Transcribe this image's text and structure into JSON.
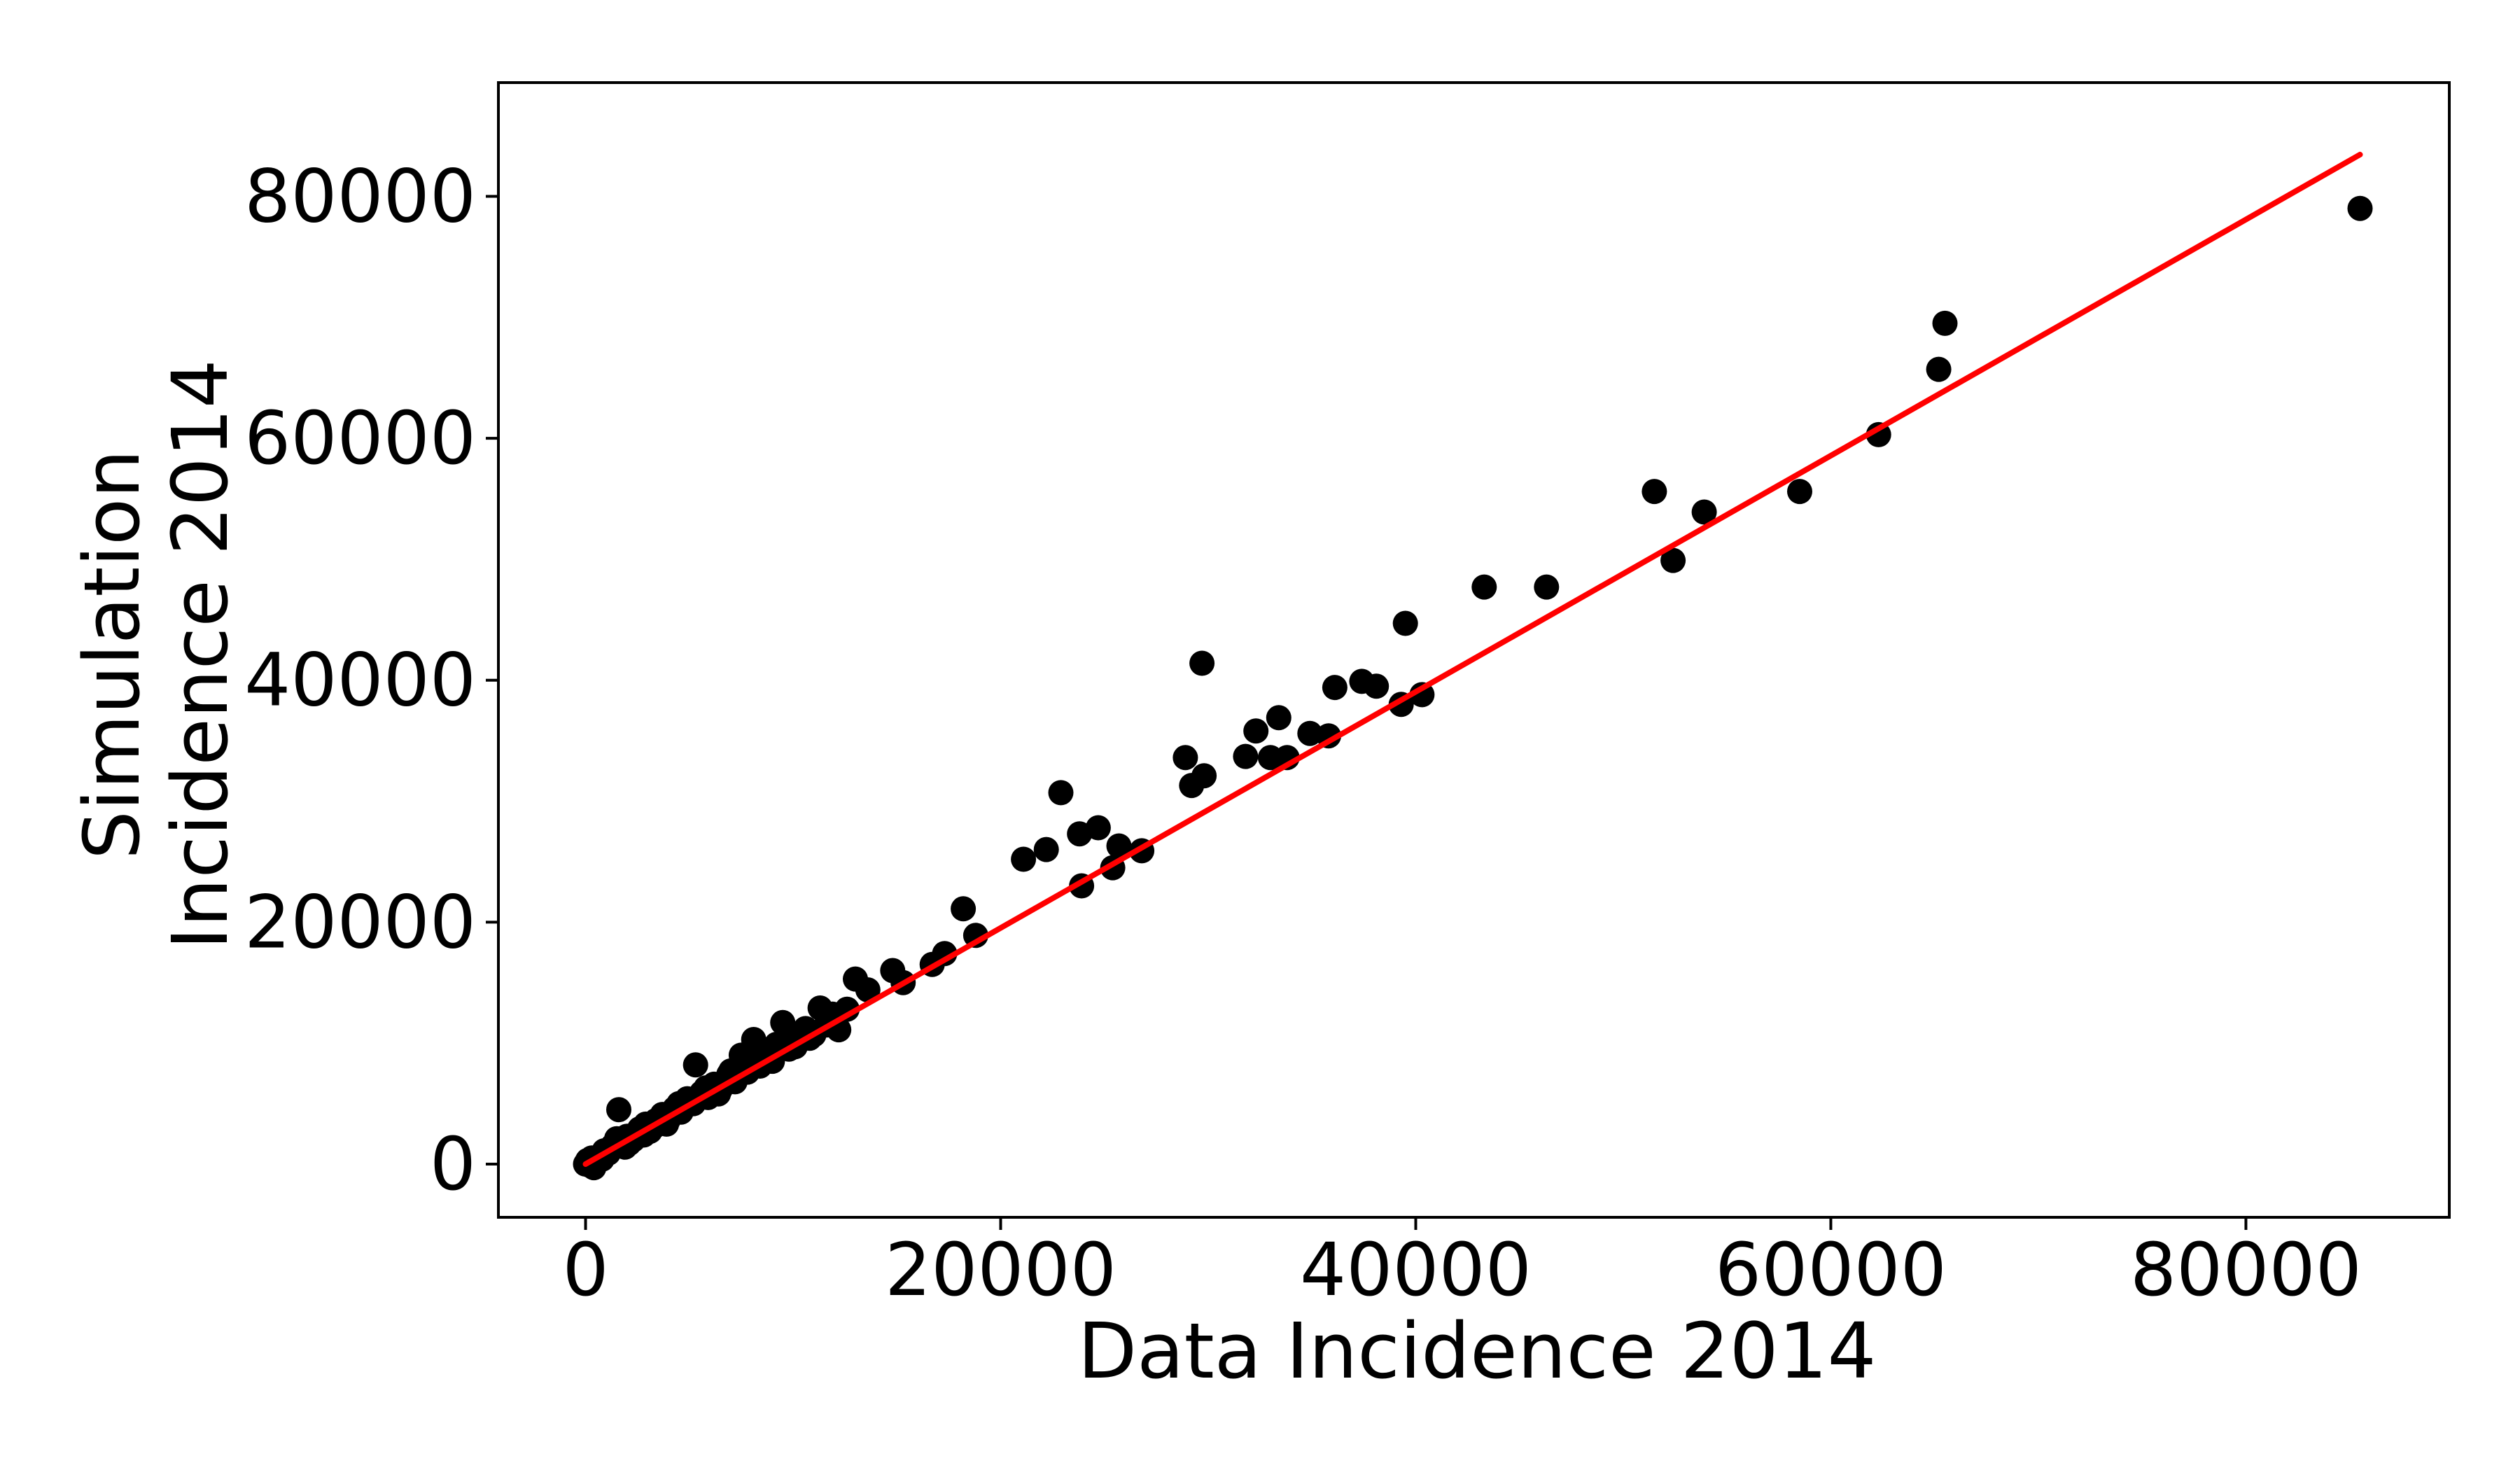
{
  "figure": {
    "background": "#ffffff",
    "xlabel": "Data Incidence 2014",
    "ylabel_line1": "Simulation",
    "ylabel_line2": "Incidence 2014"
  },
  "chart_data": {
    "type": "scatter",
    "title": "",
    "xlabel": "Data Incidence 2014",
    "ylabel": "Simulation\nIncidence 2014",
    "xlim": [
      -4200,
      89800
    ],
    "ylim": [
      -4400,
      89400
    ],
    "xticks": [
      0,
      20000,
      40000,
      60000,
      80000
    ],
    "yticks": [
      0,
      20000,
      40000,
      60000,
      80000
    ],
    "xtick_labels": [
      "0",
      "20000",
      "40000",
      "60000",
      "80000"
    ],
    "ytick_labels": [
      "0",
      "20000",
      "40000",
      "60000",
      "80000"
    ],
    "grid": false,
    "legend": "none",
    "marker_color": "#000000",
    "marker_radius": 18,
    "fit_line_color": "#ff0000",
    "fit_line_width": 8,
    "spine_color": "#000000",
    "spine_width": 4,
    "tick_length": 18,
    "tick_width": 4,
    "fit_line": {
      "x": [
        0,
        85500
      ],
      "y": [
        0,
        83450
      ]
    },
    "points": [
      [
        0,
        0
      ],
      [
        100,
        300
      ],
      [
        200,
        -100
      ],
      [
        300,
        500
      ],
      [
        400,
        -300
      ],
      [
        500,
        200
      ],
      [
        700,
        600
      ],
      [
        800,
        400
      ],
      [
        900,
        1100
      ],
      [
        1100,
        900
      ],
      [
        1300,
        1500
      ],
      [
        1500,
        2100
      ],
      [
        1600,
        4500
      ],
      [
        1700,
        1600
      ],
      [
        1900,
        1400
      ],
      [
        2000,
        2300
      ],
      [
        2100,
        1700
      ],
      [
        2300,
        2000
      ],
      [
        2600,
        2900
      ],
      [
        2800,
        2400
      ],
      [
        2900,
        3300
      ],
      [
        3100,
        2700
      ],
      [
        3300,
        3100
      ],
      [
        3400,
        3600
      ],
      [
        3700,
        4100
      ],
      [
        3900,
        3300
      ],
      [
        4000,
        3700
      ],
      [
        4300,
        4600
      ],
      [
        4500,
        5000
      ],
      [
        4600,
        4300
      ],
      [
        4900,
        5400
      ],
      [
        5200,
        5000
      ],
      [
        5300,
        8200
      ],
      [
        5600,
        5900
      ],
      [
        5800,
        6300
      ],
      [
        5900,
        5500
      ],
      [
        6200,
        6600
      ],
      [
        6400,
        5800
      ],
      [
        6500,
        6200
      ],
      [
        6900,
        7400
      ],
      [
        7000,
        7700
      ],
      [
        7200,
        6800
      ],
      [
        7500,
        9000
      ],
      [
        7800,
        7600
      ],
      [
        8100,
        10300
      ],
      [
        8200,
        8900
      ],
      [
        8400,
        8100
      ],
      [
        8500,
        9300
      ],
      [
        8800,
        8700
      ],
      [
        9000,
        8500
      ],
      [
        9200,
        9900
      ],
      [
        9500,
        11700
      ],
      [
        9600,
        10200
      ],
      [
        9800,
        9500
      ],
      [
        10100,
        9700
      ],
      [
        10300,
        10800
      ],
      [
        10600,
        11200
      ],
      [
        10800,
        10400
      ],
      [
        11000,
        10700
      ],
      [
        11300,
        12900
      ],
      [
        11600,
        11500
      ],
      [
        11900,
        12400
      ],
      [
        12200,
        11100
      ],
      [
        12600,
        12800
      ],
      [
        13000,
        15300
      ],
      [
        13600,
        14400
      ],
      [
        14800,
        16000
      ],
      [
        15300,
        15000
      ],
      [
        16700,
        16500
      ],
      [
        17300,
        17400
      ],
      [
        18200,
        21100
      ],
      [
        18800,
        18900
      ],
      [
        21100,
        25200
      ],
      [
        22200,
        26000
      ],
      [
        22900,
        30700
      ],
      [
        23800,
        27300
      ],
      [
        23900,
        23000
      ],
      [
        24700,
        27800
      ],
      [
        25400,
        24500
      ],
      [
        25700,
        26300
      ],
      [
        26800,
        25900
      ],
      [
        28900,
        33600
      ],
      [
        29200,
        31300
      ],
      [
        29700,
        41400
      ],
      [
        29800,
        32100
      ],
      [
        31800,
        33700
      ],
      [
        32300,
        35800
      ],
      [
        33000,
        33600
      ],
      [
        33400,
        36900
      ],
      [
        33800,
        33600
      ],
      [
        34900,
        35600
      ],
      [
        35800,
        35400
      ],
      [
        36100,
        39400
      ],
      [
        37400,
        39900
      ],
      [
        38100,
        39500
      ],
      [
        39300,
        38000
      ],
      [
        39500,
        44700
      ],
      [
        40300,
        38800
      ],
      [
        43300,
        47700
      ],
      [
        46300,
        47700
      ],
      [
        51500,
        55600
      ],
      [
        52400,
        49900
      ],
      [
        53900,
        53900
      ],
      [
        58500,
        55600
      ],
      [
        62300,
        60300
      ],
      [
        65200,
        65700
      ],
      [
        65500,
        69500
      ],
      [
        85500,
        79000
      ]
    ]
  }
}
